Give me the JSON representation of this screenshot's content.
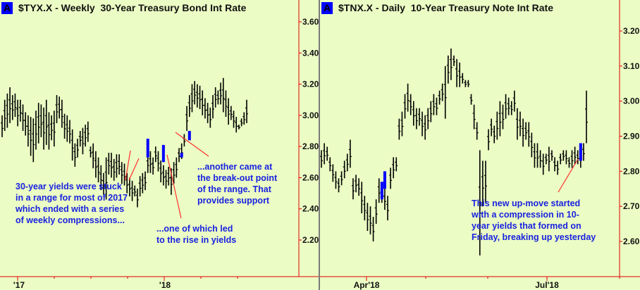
{
  "chart_data": [
    {
      "type": "ohlc-bar",
      "title": "$TYX.X - Weekly  30-Year Treasury Bond Int Rate",
      "badge": "A",
      "xlabel": "",
      "ylabel": "",
      "ylim": [
        2.05,
        3.7
      ],
      "y_ticks": [
        "3.60",
        "3.40",
        "3.20",
        "3.00",
        "2.80",
        "2.60",
        "2.40",
        "2.20"
      ],
      "x_ticks": [
        "'17",
        "'18"
      ],
      "grid": false,
      "bars": [
        [
          3.0,
          2.86
        ],
        [
          3.1,
          2.9
        ],
        [
          3.14,
          2.92
        ],
        [
          3.18,
          2.95
        ],
        [
          3.13,
          2.97
        ],
        [
          3.14,
          2.99
        ],
        [
          3.1,
          2.93
        ],
        [
          3.1,
          2.96
        ],
        [
          3.07,
          2.9
        ],
        [
          3.02,
          2.87
        ],
        [
          3.0,
          2.8
        ],
        [
          2.99,
          2.74
        ],
        [
          2.98,
          2.7
        ],
        [
          3.03,
          2.78
        ],
        [
          3.08,
          2.82
        ],
        [
          3.07,
          2.86
        ],
        [
          3.05,
          2.78
        ],
        [
          3.1,
          2.81
        ],
        [
          3.02,
          2.78
        ],
        [
          3.0,
          2.84
        ],
        [
          3.03,
          2.8
        ],
        [
          3.13,
          2.95
        ],
        [
          3.12,
          2.98
        ],
        [
          3.1,
          2.92
        ],
        [
          3.01,
          2.85
        ],
        [
          3.0,
          2.83
        ],
        [
          2.97,
          2.82
        ],
        [
          2.91,
          2.71
        ],
        [
          2.82,
          2.67
        ],
        [
          2.85,
          2.73
        ],
        [
          2.9,
          2.8
        ],
        [
          2.92,
          2.75
        ],
        [
          2.94,
          2.8
        ],
        [
          2.96,
          2.83
        ],
        [
          2.8,
          2.73
        ],
        [
          2.82,
          2.66
        ],
        [
          2.77,
          2.6
        ],
        [
          2.73,
          2.57
        ],
        [
          2.68,
          2.52
        ],
        [
          2.63,
          2.49
        ],
        [
          2.73,
          2.46
        ],
        [
          2.76,
          2.62
        ],
        [
          2.76,
          2.6
        ],
        [
          2.72,
          2.58
        ],
        [
          2.75,
          2.6
        ],
        [
          2.75,
          2.62
        ],
        [
          2.7,
          2.56
        ],
        [
          2.69,
          2.55
        ],
        [
          2.63,
          2.5
        ],
        [
          2.6,
          2.48
        ],
        [
          2.58,
          2.45
        ],
        [
          2.55,
          2.48
        ],
        [
          2.53,
          2.41
        ],
        [
          2.61,
          2.48
        ],
        [
          2.63,
          2.5
        ],
        [
          2.64,
          2.52
        ],
        [
          2.75,
          2.63
        ],
        [
          2.77,
          2.63
        ],
        [
          2.73,
          2.62
        ],
        [
          2.8,
          2.7
        ],
        [
          2.77,
          2.64
        ],
        [
          2.71,
          2.57
        ],
        [
          2.68,
          2.55
        ],
        [
          2.65,
          2.53
        ],
        [
          2.67,
          2.55
        ],
        [
          2.66,
          2.49
        ],
        [
          2.7,
          2.56
        ],
        [
          2.73,
          2.6
        ],
        [
          2.79,
          2.7
        ],
        [
          2.82,
          2.72
        ],
        [
          2.88,
          2.8
        ],
        [
          3.06,
          2.9
        ],
        [
          3.13,
          2.99
        ],
        [
          3.2,
          3.02
        ],
        [
          3.22,
          3.07
        ],
        [
          3.2,
          3.05
        ],
        [
          3.19,
          3.04
        ],
        [
          3.16,
          3.0
        ],
        [
          3.11,
          2.98
        ],
        [
          3.08,
          2.95
        ],
        [
          3.05,
          2.92
        ],
        [
          3.13,
          2.98
        ],
        [
          3.18,
          3.05
        ],
        [
          3.16,
          3.07
        ],
        [
          3.21,
          3.07
        ],
        [
          3.24,
          3.02
        ],
        [
          3.16,
          2.99
        ],
        [
          3.11,
          2.94
        ],
        [
          3.06,
          2.97
        ],
        [
          3.03,
          2.92
        ],
        [
          2.99,
          2.89
        ],
        [
          2.94,
          2.91
        ],
        [
          2.98,
          2.93
        ],
        [
          3.02,
          2.94
        ],
        [
          3.1,
          2.95
        ]
      ],
      "compression_bars": [
        {
          "index": 56,
          "high": 2.85,
          "low": 2.73
        },
        {
          "index": 62,
          "high": 2.81,
          "low": 2.7
        },
        {
          "index": 69,
          "high": 2.76,
          "low": 2.73
        },
        {
          "index": 72,
          "high": 2.9,
          "low": 2.84
        }
      ]
    },
    {
      "type": "ohlc-bar",
      "title": "$TNX.X - Daily  10-Year Treasury Note Int Rate",
      "badge": "A",
      "xlabel": "",
      "ylabel": "",
      "ylim": [
        2.5,
        3.25
      ],
      "y_ticks": [
        "3.20",
        "3.10",
        "3.00",
        "2.90",
        "2.80",
        "2.70",
        "2.60"
      ],
      "x_ticks": [
        "Apr'18",
        "Jul'18"
      ],
      "grid": false,
      "bars": [
        [
          2.86,
          2.81
        ],
        [
          2.88,
          2.82
        ],
        [
          2.87,
          2.83
        ],
        [
          2.84,
          2.8
        ],
        [
          2.82,
          2.77
        ],
        [
          2.8,
          2.75
        ],
        [
          2.78,
          2.74
        ],
        [
          2.8,
          2.76
        ],
        [
          2.83,
          2.78
        ],
        [
          2.85,
          2.8
        ],
        [
          2.89,
          2.81
        ],
        [
          2.78,
          2.72
        ],
        [
          2.79,
          2.74
        ],
        [
          2.78,
          2.73
        ],
        [
          2.77,
          2.68
        ],
        [
          2.73,
          2.66
        ],
        [
          2.71,
          2.63
        ],
        [
          2.7,
          2.62
        ],
        [
          2.67,
          2.6
        ],
        [
          2.72,
          2.65
        ],
        [
          2.78,
          2.71
        ],
        [
          2.76,
          2.71
        ],
        [
          2.75,
          2.69
        ],
        [
          2.73,
          2.66
        ],
        [
          2.81,
          2.75
        ],
        [
          2.84,
          2.78
        ],
        [
          2.84,
          2.8
        ],
        [
          2.95,
          2.89
        ],
        [
          2.97,
          2.9
        ],
        [
          3.02,
          2.95
        ],
        [
          3.05,
          2.97
        ],
        [
          3.02,
          2.96
        ],
        [
          3.0,
          2.93
        ],
        [
          2.98,
          2.92
        ],
        [
          2.98,
          2.93
        ],
        [
          2.97,
          2.9
        ],
        [
          2.96,
          2.89
        ],
        [
          2.98,
          2.92
        ],
        [
          3.0,
          2.94
        ],
        [
          3.02,
          2.96
        ],
        [
          3.01,
          2.96
        ],
        [
          3.03,
          2.99
        ],
        [
          3.05,
          3.0
        ],
        [
          3.1,
          2.95
        ],
        [
          3.13,
          3.05
        ],
        [
          3.15,
          3.06
        ],
        [
          3.13,
          3.1
        ],
        [
          3.12,
          3.04
        ],
        [
          3.11,
          3.04
        ],
        [
          3.08,
          3.05
        ],
        [
          3.06,
          3.04
        ],
        [
          3.06,
          3.04
        ],
        [
          3.02,
          2.99
        ],
        [
          2.99,
          2.92
        ],
        [
          2.94,
          2.89
        ],
        [
          2.86,
          2.56
        ],
        [
          2.83,
          2.7
        ],
        [
          2.83,
          2.71
        ],
        [
          2.92,
          2.86
        ],
        [
          2.95,
          2.9
        ],
        [
          2.93,
          2.88
        ],
        [
          2.97,
          2.89
        ],
        [
          3.0,
          2.9
        ],
        [
          2.99,
          2.92
        ],
        [
          3.02,
          2.95
        ],
        [
          3.01,
          2.96
        ],
        [
          3.0,
          2.96
        ],
        [
          3.03,
          2.97
        ],
        [
          2.98,
          2.89
        ],
        [
          2.97,
          2.9
        ],
        [
          2.95,
          2.87
        ],
        [
          2.94,
          2.89
        ],
        [
          2.94,
          2.87
        ],
        [
          2.91,
          2.84
        ],
        [
          2.88,
          2.81
        ],
        [
          2.88,
          2.81
        ],
        [
          2.86,
          2.81
        ],
        [
          2.85,
          2.79
        ],
        [
          2.85,
          2.82
        ],
        [
          2.87,
          2.8
        ],
        [
          2.86,
          2.83
        ],
        [
          2.84,
          2.8
        ],
        [
          2.83,
          2.79
        ],
        [
          2.85,
          2.82
        ],
        [
          2.86,
          2.83
        ],
        [
          2.86,
          2.82
        ],
        [
          2.84,
          2.81
        ],
        [
          2.86,
          2.81
        ],
        [
          2.87,
          2.82
        ],
        [
          2.86,
          2.82
        ],
        [
          2.88,
          2.81
        ],
        [
          2.88,
          2.83
        ],
        [
          3.03,
          2.88
        ]
      ],
      "compression_bars": [
        {
          "index": 21,
          "high": 2.77,
          "low": 2.72
        },
        {
          "index": 22,
          "high": 2.8,
          "low": 2.75
        },
        {
          "index": 90,
          "high": 2.88,
          "low": 2.83
        }
      ]
    }
  ],
  "left_panel": {
    "badge": "A",
    "title": "$TYX.X - Weekly  30-Year Treasury Bond Int Rate",
    "y_ticks": [
      "3.60",
      "3.40",
      "3.20",
      "3.00",
      "2.80",
      "2.60",
      "2.40",
      "2.20"
    ],
    "x_ticks": [
      "'17",
      "'18"
    ],
    "annotations": {
      "range": "30-year yields were stuck\nin a range for most of 2017\nwhich ended with a series\nof weekly compressions...",
      "rise": "...one of which led\nto the rise in yields",
      "breakout": "...another came at\nthe break-out point\nof the range. That\nprovides support"
    }
  },
  "right_panel": {
    "badge": "A",
    "title": "$TNX.X - Daily  10-Year Treasury Note Int Rate",
    "y_ticks": [
      "3.20",
      "3.10",
      "3.00",
      "2.90",
      "2.80",
      "2.70",
      "2.60"
    ],
    "x_ticks": [
      "Apr'18",
      "Jul'18"
    ],
    "annotations": {
      "upmove": "This new up-move started\nwith a compression in 10-\nyear yields that formed on\nFriday, breaking up yesterday"
    }
  },
  "colors": {
    "background": "#ebfcc4",
    "axis": "#e00000",
    "bars": "#000000",
    "compression": "#0000ff",
    "annotation_text": "#1a22e0",
    "annotation_line": "#ff3030"
  }
}
